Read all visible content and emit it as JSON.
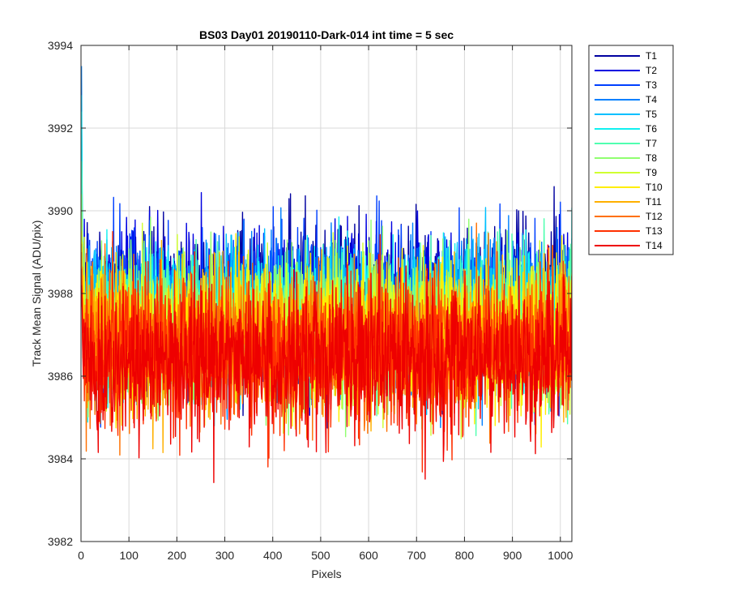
{
  "chart_data": {
    "type": "line",
    "title": "BS03 Day01 20190110-Dark-014 int time = 5 sec",
    "xlabel": "Pixels",
    "ylabel": "Track Mean Signal (ADU/pix)",
    "xlim": [
      0,
      1024
    ],
    "ylim": [
      3982,
      3994
    ],
    "xticks": [
      0,
      100,
      200,
      300,
      400,
      500,
      600,
      700,
      800,
      900,
      1000
    ],
    "yticks": [
      3982,
      3984,
      3986,
      3988,
      3990,
      3992,
      3994
    ],
    "grid": true,
    "legend_position": "outside-top-right",
    "x_count": 1024,
    "series": [
      {
        "name": "T1",
        "color": "#0000a0",
        "mean": 3987.9,
        "spread": 0.85,
        "start": 3990.6
      },
      {
        "name": "T2",
        "color": "#0000e0",
        "mean": 3987.8,
        "spread": 0.85,
        "start": 3991.0
      },
      {
        "name": "T3",
        "color": "#0040ff",
        "mean": 3987.7,
        "spread": 0.85,
        "start": 3991.6
      },
      {
        "name": "T4",
        "color": "#0080ff",
        "mean": 3987.6,
        "spread": 0.85,
        "start": 3993.5
      },
      {
        "name": "T5",
        "color": "#00c0ff",
        "mean": 3987.5,
        "spread": 0.85,
        "start": 3992.8
      },
      {
        "name": "T6",
        "color": "#10f0f0",
        "mean": 3987.4,
        "spread": 0.85,
        "start": 3992.4
      },
      {
        "name": "T7",
        "color": "#50ffb0",
        "mean": 3987.3,
        "spread": 0.85,
        "start": 3991.2
      },
      {
        "name": "T8",
        "color": "#90ff70",
        "mean": 3987.2,
        "spread": 0.85,
        "start": 3990.4
      },
      {
        "name": "T9",
        "color": "#d0ff30",
        "mean": 3987.1,
        "spread": 0.85,
        "start": 3989.8
      },
      {
        "name": "T10",
        "color": "#ffee00",
        "mean": 3987.0,
        "spread": 0.85,
        "start": 3989.5
      },
      {
        "name": "T11",
        "color": "#ffb000",
        "mean": 3986.9,
        "spread": 0.85,
        "start": 3989.2
      },
      {
        "name": "T12",
        "color": "#ff7000",
        "mean": 3986.8,
        "spread": 0.85,
        "start": 3989.0
      },
      {
        "name": "T13",
        "color": "#ff3000",
        "mean": 3986.6,
        "spread": 0.85,
        "start": 3988.6
      },
      {
        "name": "T14",
        "color": "#ee0000",
        "mean": 3986.4,
        "spread": 0.9,
        "start": 3988.2
      }
    ]
  }
}
